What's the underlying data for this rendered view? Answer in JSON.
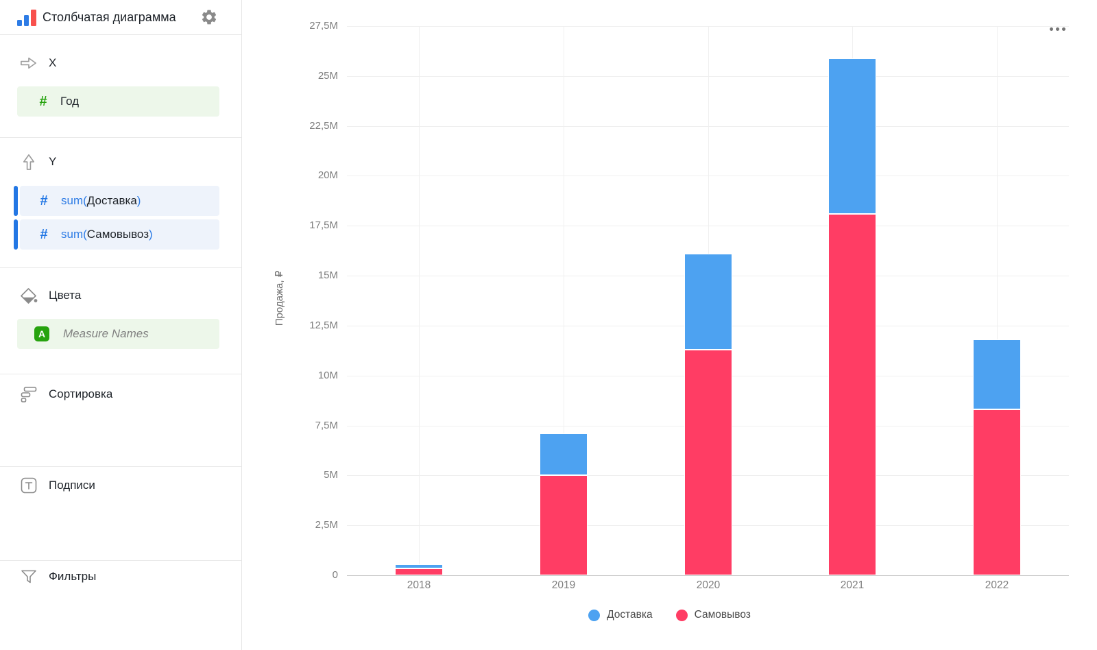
{
  "sidebar": {
    "title": "Столбчатая диаграмма",
    "sections": {
      "x": {
        "label": "X"
      },
      "y": {
        "label": "Y"
      },
      "colors": {
        "label": "Цвета"
      },
      "sorting": {
        "label": "Сортировка"
      },
      "labels": {
        "label": "Подписи"
      },
      "filters": {
        "label": "Фильтры"
      }
    },
    "fields": {
      "x_field": {
        "name": "Год",
        "type": "dimension-number"
      },
      "y_field_1": {
        "agg_open": "sum(",
        "name": "Доставка",
        "agg_close": ")",
        "type": "measure-number"
      },
      "y_field_2": {
        "agg_open": "sum(",
        "name": "Самовывоз",
        "agg_close": ")",
        "type": "measure-number"
      },
      "color_field": {
        "name": "Measure Names",
        "type": "measure-names"
      }
    },
    "icons": {
      "logo": "bar-chart",
      "settings": "gear",
      "x_section": "arrow-right",
      "y_section": "arrow-up",
      "colors_section": "paint-bucket",
      "sorting_section": "sort-bars",
      "labels_section": "text-badge",
      "filters_section": "funnel",
      "dimension": "hash",
      "measure_names": "letter-a"
    }
  },
  "chart": {
    "more_menu_icon": "ellipsis"
  },
  "theme": {
    "accent_blue": "#2377E4",
    "field_green": "#27A30F",
    "chip_green_bg": "#EDF7EA",
    "chip_blue_bg": "#EEF3FB",
    "bar_blue": "#4DA2F1",
    "bar_red": "#FF3D64"
  },
  "chart_data": {
    "type": "bar",
    "stacked": true,
    "title": "",
    "categories": [
      "2018",
      "2019",
      "2020",
      "2021",
      "2022"
    ],
    "series": [
      {
        "name": "Доставка",
        "color": "#4DA2F1",
        "values_millions": [
          0.2,
          2.1,
          4.8,
          7.8,
          3.5
        ]
      },
      {
        "name": "Самовывоз",
        "color": "#FF3D64",
        "values_millions": [
          0.35,
          5.0,
          11.3,
          18.1,
          8.3
        ]
      }
    ],
    "stack_order_bottom_to_top": [
      "Самовывоз",
      "Доставка"
    ],
    "xlabel": "",
    "ylabel": "Продажа, ₽",
    "ylim_millions": [
      0,
      27.5
    ],
    "ytick_step_millions": 2.5,
    "ytick_labels": [
      "0",
      "2,5M",
      "5M",
      "7,5M",
      "10M",
      "12,5M",
      "15M",
      "17,5M",
      "20M",
      "22,5M",
      "25M",
      "27,5M"
    ],
    "grid": true,
    "legend_position": "bottom"
  }
}
